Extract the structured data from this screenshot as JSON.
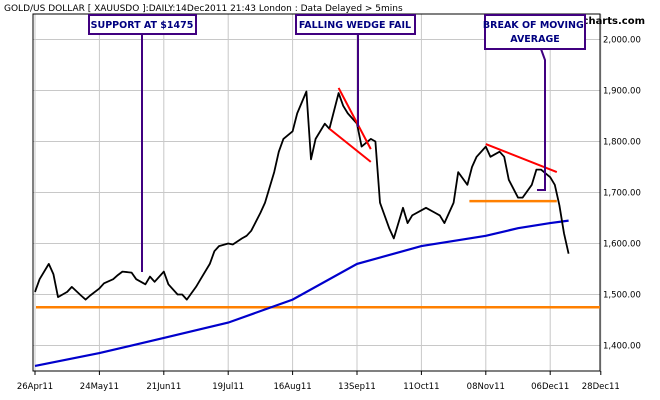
{
  "chart_data": {
    "type": "line",
    "title": "GOLD/US DOLLAR [ XAUUSDO ]:DAILY:14Dec2011 21:43 London : Data Delayed > 5mins",
    "source": "www.incrediblecharts.com",
    "ylim": [
      1350,
      2050
    ],
    "y_ticks": [
      1400,
      1500,
      1600,
      1700,
      1800,
      1900,
      2000
    ],
    "y_tick_labels": [
      "1,400.00",
      "1,500.00",
      "1,600.00",
      "1,700.00",
      "1,800.00",
      "1,900.00",
      "2,000.00"
    ],
    "x_ticks": [
      "26Apr11",
      "24May11",
      "21Jun11",
      "19Jul11",
      "16Aug11",
      "13Sep11",
      "11Oct11",
      "08Nov11",
      "06Dec11",
      "28Dec11"
    ],
    "grid": true,
    "colors": {
      "price": "#000000",
      "moving_average": "#0000cc",
      "support": "#ff8000",
      "trendline": "#ff0000",
      "annotation": "#400080",
      "grid": "#c8c8c8"
    },
    "series": [
      {
        "key": "price",
        "points": [
          [
            "26Apr11",
            1505
          ],
          [
            "28Apr11",
            1530
          ],
          [
            "02May11",
            1560
          ],
          [
            "04May11",
            1540
          ],
          [
            "06May11",
            1495
          ],
          [
            "10May11",
            1505
          ],
          [
            "12May11",
            1515
          ],
          [
            "16May11",
            1498
          ],
          [
            "18May11",
            1490
          ],
          [
            "20May11",
            1498
          ],
          [
            "24May11",
            1512
          ],
          [
            "26May11",
            1522
          ],
          [
            "30May11",
            1530
          ],
          [
            "01Jun11",
            1538
          ],
          [
            "03Jun11",
            1545
          ],
          [
            "07Jun11",
            1543
          ],
          [
            "09Jun11",
            1530
          ],
          [
            "13Jun11",
            1520
          ],
          [
            "15Jun11",
            1535
          ],
          [
            "17Jun11",
            1525
          ],
          [
            "21Jun11",
            1545
          ],
          [
            "23Jun11",
            1520
          ],
          [
            "27Jun11",
            1500
          ],
          [
            "29Jun11",
            1500
          ],
          [
            "01Jul11",
            1490
          ],
          [
            "05Jul11",
            1515
          ],
          [
            "07Jul11",
            1530
          ],
          [
            "11Jul11",
            1560
          ],
          [
            "13Jul11",
            1585
          ],
          [
            "15Jul11",
            1595
          ],
          [
            "19Jul11",
            1600
          ],
          [
            "21Jul11",
            1598
          ],
          [
            "25Jul11",
            1610
          ],
          [
            "27Jul11",
            1615
          ],
          [
            "29Jul11",
            1625
          ],
          [
            "02Aug11",
            1660
          ],
          [
            "04Aug11",
            1680
          ],
          [
            "08Aug11",
            1740
          ],
          [
            "10Aug11",
            1780
          ],
          [
            "12Aug11",
            1805
          ],
          [
            "16Aug11",
            1820
          ],
          [
            "18Aug11",
            1855
          ],
          [
            "22Aug11",
            1898
          ],
          [
            "24Aug11",
            1765
          ],
          [
            "26Aug11",
            1805
          ],
          [
            "30Aug11",
            1835
          ],
          [
            "01Sep11",
            1825
          ],
          [
            "05Sep11",
            1895
          ],
          [
            "07Sep11",
            1870
          ],
          [
            "09Sep11",
            1855
          ],
          [
            "13Sep11",
            1835
          ],
          [
            "15Sep11",
            1790
          ],
          [
            "19Sep11",
            1805
          ],
          [
            "21Sep11",
            1800
          ],
          [
            "23Sep11",
            1680
          ],
          [
            "27Sep11",
            1630
          ],
          [
            "29Sep11",
            1610
          ],
          [
            "03Oct11",
            1670
          ],
          [
            "05Oct11",
            1640
          ],
          [
            "07Oct11",
            1655
          ],
          [
            "11Oct11",
            1665
          ],
          [
            "13Oct11",
            1670
          ],
          [
            "17Oct11",
            1660
          ],
          [
            "19Oct11",
            1655
          ],
          [
            "21Oct11",
            1640
          ],
          [
            "25Oct11",
            1680
          ],
          [
            "27Oct11",
            1740
          ],
          [
            "31Oct11",
            1715
          ],
          [
            "02Nov11",
            1750
          ],
          [
            "04Nov11",
            1770
          ],
          [
            "08Nov11",
            1790
          ],
          [
            "10Nov11",
            1770
          ],
          [
            "14Nov11",
            1780
          ],
          [
            "16Nov11",
            1770
          ],
          [
            "18Nov11",
            1725
          ],
          [
            "22Nov11",
            1690
          ],
          [
            "24Nov11",
            1690
          ],
          [
            "28Nov11",
            1715
          ],
          [
            "30Nov11",
            1745
          ],
          [
            "02Dec11",
            1745
          ],
          [
            "06Dec11",
            1730
          ],
          [
            "08Dec11",
            1715
          ],
          [
            "10Dec11",
            1675
          ],
          [
            "12Dec11",
            1620
          ],
          [
            "14Dec11",
            1580
          ]
        ]
      },
      {
        "key": "moving_average",
        "points": [
          [
            "26Apr11",
            1360
          ],
          [
            "24May11",
            1385
          ],
          [
            "21Jun11",
            1415
          ],
          [
            "19Jul11",
            1445
          ],
          [
            "16Aug11",
            1490
          ],
          [
            "13Sep11",
            1560
          ],
          [
            "11Oct11",
            1595
          ],
          [
            "08Nov11",
            1615
          ],
          [
            "22Nov11",
            1630
          ],
          [
            "06Dec11",
            1640
          ],
          [
            "14Dec11",
            1645
          ]
        ]
      }
    ],
    "support_line": {
      "value": 1475
    },
    "annotations": [
      {
        "text": "SUPPORT AT $1475"
      },
      {
        "text": "FALLING WEDGE FAIL"
      },
      {
        "text": "BREAK OF MOVING AVERAGE"
      }
    ]
  }
}
